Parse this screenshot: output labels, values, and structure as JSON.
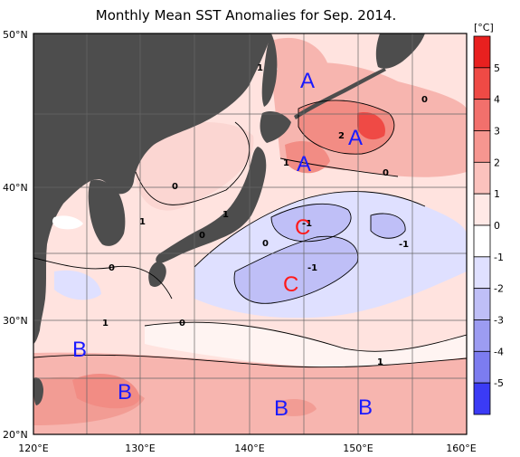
{
  "title": "Monthly Mean SST Anomalies for Sep. 2014.",
  "colorbar": {
    "unit": "[°C]",
    "levels": [
      "5",
      "4",
      "3",
      "2",
      "1",
      "0",
      "-1",
      "-2",
      "-3",
      "-4",
      "-5"
    ],
    "colors": [
      "#e8201f",
      "#ef4a45",
      "#f2706c",
      "#f69690",
      "#fbc2bd",
      "#ffe9e6",
      "#ffffff",
      "#dfe0ff",
      "#bfbff7",
      "#9c9cf2",
      "#7c7cf0",
      "#3b3bf5"
    ]
  },
  "axes": {
    "lat_labels": [
      "50°N",
      "40°N",
      "30°N",
      "20°N"
    ],
    "lon_labels": [
      "120°E",
      "130°E",
      "140°E",
      "150°E",
      "160°E"
    ]
  },
  "contour_labels": [
    "1",
    "0",
    "2",
    "1",
    "0",
    "0",
    "1",
    "0",
    "1",
    "0",
    "-1",
    "-1",
    "0",
    "1",
    "0",
    "1"
  ],
  "region_labels": [
    "A",
    "A",
    "A",
    "C",
    "C",
    "B",
    "B",
    "B",
    "B"
  ],
  "colors": {
    "land": "#4d4d4d",
    "warm_strong": "#ef4a45",
    "warm": "#f69690",
    "warm_light": "#fbd6d2",
    "cool_light": "#dfe0ff",
    "cool": "#bfbff7",
    "cool_strong": "#9c9cf2",
    "label_blue": "#1a1aff",
    "label_red": "#ff1a1a"
  }
}
